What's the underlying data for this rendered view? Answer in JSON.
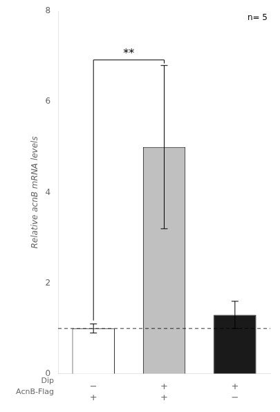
{
  "chart_data": {
    "type": "bar",
    "categories": [
      "−\n+",
      "+\n+",
      "+\n−"
    ],
    "category_rows": [
      "Dip",
      "AcnB-Flag"
    ],
    "values": [
      1.0,
      5.0,
      1.3
    ],
    "errors": [
      0.1,
      1.8,
      0.3
    ],
    "colors": [
      "white",
      "#c0c0c0",
      "#1a1a1a"
    ],
    "ylabel": "Relative acnB mRNA levels",
    "ylim": [
      0,
      8
    ],
    "yticks": [
      0,
      2,
      4,
      6,
      8
    ],
    "reference_line": 1.0,
    "annotations": [
      "n= 5"
    ],
    "significance": "**",
    "grid": false
  }
}
